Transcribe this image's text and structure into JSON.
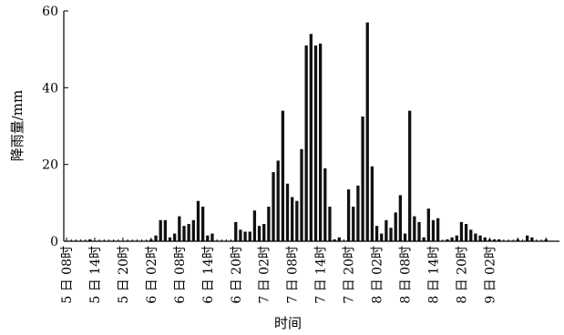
{
  "chart_data": {
    "type": "bar",
    "title": "",
    "xlabel": "时间",
    "ylabel": "降雨量/mm",
    "ylim": [
      0,
      60
    ],
    "y_ticks": [
      0,
      20,
      40,
      60
    ],
    "x_tick_labels": [
      "5 日 08时",
      "5 日 14时",
      "5 日 20时",
      "6 日 02时",
      "6 日 08时",
      "6 日 14时",
      "6 日 20时",
      "7 日 02时",
      "7 日 08时",
      "7 日 14时",
      "7 日 20时",
      "8 日 02时",
      "8 日 08时",
      "8 日 14时",
      "8 日 20时",
      "9 日 02时"
    ],
    "hours_per_bar": 1,
    "first_bar_hour": "5 日 08时",
    "values": [
      0,
      0,
      0,
      0,
      0,
      0.5,
      0,
      0,
      0,
      0,
      0,
      0,
      0,
      0,
      0,
      0,
      0,
      0,
      0.5,
      1.5,
      5.5,
      5.5,
      1,
      2,
      6.5,
      4,
      4.5,
      5.5,
      10.5,
      9,
      1.5,
      2,
      0,
      0,
      0,
      0,
      5,
      3,
      2.5,
      2.5,
      8,
      4,
      4.5,
      9,
      18,
      21,
      34,
      15,
      11.5,
      10.5,
      24,
      51,
      54,
      51,
      51.5,
      19,
      9,
      0.5,
      1,
      0,
      13.5,
      9,
      14.5,
      32.5,
      57,
      19.5,
      4,
      2,
      5.5,
      3.5,
      7.5,
      12,
      2,
      34,
      6.5,
      5,
      1,
      8.5,
      5.5,
      6,
      0,
      0.5,
      1,
      1.5,
      5,
      4.5,
      3,
      2,
      1.5,
      1,
      0.5,
      0.5,
      0.5,
      0,
      0,
      0,
      0.5,
      0,
      1.5,
      1,
      0,
      0,
      0.5
    ]
  }
}
